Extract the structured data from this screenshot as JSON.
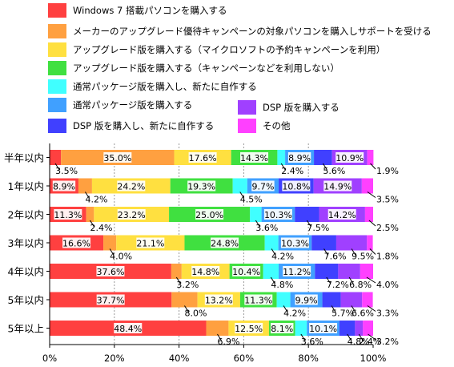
{
  "chart_data": {
    "type": "bar",
    "orientation": "horizontal",
    "stacked": true,
    "percent": true,
    "title": "",
    "xlabel": "",
    "ylabel": "",
    "xlim": [
      0,
      100
    ],
    "x_ticks": [
      "0%",
      "20%",
      "40%",
      "60%",
      "80%",
      "100%"
    ],
    "grid": true,
    "legend_position": "top",
    "categories": [
      "半年以内",
      "1年以内",
      "2年以内",
      "3年以内",
      "4年以内",
      "5年以内",
      "5年以上"
    ],
    "series": [
      {
        "name": "Windows 7 搭載パソコンを購入する",
        "color": "#ff4040",
        "values": [
          3.5,
          8.9,
          11.3,
          16.6,
          37.6,
          37.7,
          48.4
        ]
      },
      {
        "name": "メーカーのアップグレード優待キャンペーンの対象パソコンを購入しサポートを受ける",
        "color": "#ffa040",
        "values": [
          35.0,
          4.2,
          2.4,
          4.0,
          3.2,
          8.0,
          6.9
        ]
      },
      {
        "name": "アップグレード版を購入する（マイクロソフトの予約キャンペーンを利用）",
        "color": "#ffe040",
        "values": [
          17.6,
          24.2,
          23.2,
          21.1,
          14.8,
          13.2,
          12.5
        ]
      },
      {
        "name": "アップグレード版を購入する（キャンペーンなどを利用しない）",
        "color": "#40e040",
        "values": [
          14.3,
          19.3,
          25.0,
          24.8,
          10.4,
          11.3,
          8.1
        ]
      },
      {
        "name": "通常パッケージ版を購入し、新たに自作する",
        "color": "#40ffff",
        "values": [
          2.4,
          4.5,
          3.6,
          4.2,
          4.8,
          4.2,
          3.6
        ]
      },
      {
        "name": "通常パッケージ版を購入する",
        "color": "#40a0ff",
        "values": [
          8.9,
          9.7,
          10.3,
          10.3,
          11.2,
          9.9,
          10.1
        ]
      },
      {
        "name": "DSP 版を購入し、新たに自作する",
        "color": "#4040ff",
        "values": [
          5.6,
          10.8,
          7.5,
          7.6,
          7.2,
          5.7,
          4.8
        ]
      },
      {
        "name": "DSP 版を購入する",
        "color": "#a040ff",
        "values": [
          10.9,
          14.9,
          14.2,
          9.5,
          6.8,
          6.6,
          2.4
        ]
      },
      {
        "name": "その他",
        "color": "#ff40ff",
        "values": [
          1.9,
          3.5,
          2.5,
          1.8,
          4.0,
          3.3,
          3.2
        ]
      }
    ],
    "bar_labels": [
      [
        {
          "text": "3.5%",
          "s": 0,
          "pos": "below"
        },
        {
          "text": "35.0%",
          "s": 1,
          "pos": "inside"
        },
        {
          "text": "17.6%",
          "s": 2,
          "pos": "inside"
        },
        {
          "text": "14.3%",
          "s": 3,
          "pos": "inside"
        },
        {
          "text": "2.4%",
          "s": 4,
          "pos": "below"
        },
        {
          "text": "8.9%",
          "s": 5,
          "pos": "inside"
        },
        {
          "text": "5.6%",
          "s": 6,
          "pos": "below"
        },
        {
          "text": "10.9%",
          "s": 7,
          "pos": "inside"
        },
        {
          "text": "1.9%",
          "s": 8,
          "pos": "right-below"
        }
      ],
      [
        {
          "text": "8.9%",
          "s": 0,
          "pos": "inside"
        },
        {
          "text": "4.2%",
          "s": 1,
          "pos": "below"
        },
        {
          "text": "24.2%",
          "s": 2,
          "pos": "inside"
        },
        {
          "text": "19.3%",
          "s": 3,
          "pos": "inside"
        },
        {
          "text": "4.5%",
          "s": 4,
          "pos": "below"
        },
        {
          "text": "9.7%",
          "s": 5,
          "pos": "inside"
        },
        {
          "text": "10.8%",
          "s": 6,
          "pos": "inside"
        },
        {
          "text": "14.9%",
          "s": 7,
          "pos": "inside"
        },
        {
          "text": "3.5%",
          "s": 8,
          "pos": "right-below"
        }
      ],
      [
        {
          "text": "11.3%",
          "s": 0,
          "pos": "inside"
        },
        {
          "text": "2.4%",
          "s": 1,
          "pos": "below"
        },
        {
          "text": "23.2%",
          "s": 2,
          "pos": "inside"
        },
        {
          "text": "25.0%",
          "s": 3,
          "pos": "inside"
        },
        {
          "text": "3.6%",
          "s": 4,
          "pos": "below"
        },
        {
          "text": "10.3%",
          "s": 5,
          "pos": "inside"
        },
        {
          "text": "7.5%",
          "s": 6,
          "pos": "below"
        },
        {
          "text": "14.2%",
          "s": 7,
          "pos": "inside"
        },
        {
          "text": "2.5%",
          "s": 8,
          "pos": "right-below"
        }
      ],
      [
        {
          "text": "16.6%",
          "s": 0,
          "pos": "inside"
        },
        {
          "text": "4.0%",
          "s": 1,
          "pos": "below"
        },
        {
          "text": "21.1%",
          "s": 2,
          "pos": "inside"
        },
        {
          "text": "24.8%",
          "s": 3,
          "pos": "inside"
        },
        {
          "text": "4.2%",
          "s": 4,
          "pos": "below"
        },
        {
          "text": "10.3%",
          "s": 5,
          "pos": "inside"
        },
        {
          "text": "7.6%",
          "s": 6,
          "pos": "below"
        },
        {
          "text": "9.5%",
          "s": 7,
          "pos": "below"
        },
        {
          "text": "1.8%",
          "s": 8,
          "pos": "right-below"
        }
      ],
      [
        {
          "text": "37.6%",
          "s": 0,
          "pos": "inside"
        },
        {
          "text": "3.2%",
          "s": 1,
          "pos": "below"
        },
        {
          "text": "14.8%",
          "s": 2,
          "pos": "inside"
        },
        {
          "text": "10.4%",
          "s": 3,
          "pos": "inside"
        },
        {
          "text": "4.8%",
          "s": 4,
          "pos": "below"
        },
        {
          "text": "11.2%",
          "s": 5,
          "pos": "inside"
        },
        {
          "text": "7.2%",
          "s": 6,
          "pos": "below"
        },
        {
          "text": "6.8%",
          "s": 7,
          "pos": "below"
        },
        {
          "text": "4.0%",
          "s": 8,
          "pos": "right-below"
        }
      ],
      [
        {
          "text": "37.7%",
          "s": 0,
          "pos": "inside"
        },
        {
          "text": "8.0%",
          "s": 1,
          "pos": "below"
        },
        {
          "text": "13.2%",
          "s": 2,
          "pos": "inside"
        },
        {
          "text": "11.3%",
          "s": 3,
          "pos": "inside"
        },
        {
          "text": "4.2%",
          "s": 4,
          "pos": "below"
        },
        {
          "text": "9.9%",
          "s": 5,
          "pos": "inside"
        },
        {
          "text": "5.7%",
          "s": 6,
          "pos": "below"
        },
        {
          "text": "6.6%",
          "s": 7,
          "pos": "below"
        },
        {
          "text": "3.3%",
          "s": 8,
          "pos": "right-below"
        }
      ],
      [
        {
          "text": "48.4%",
          "s": 0,
          "pos": "inside"
        },
        {
          "text": "6.9%",
          "s": 1,
          "pos": "below"
        },
        {
          "text": "12.5%",
          "s": 2,
          "pos": "inside"
        },
        {
          "text": "8.1%",
          "s": 3,
          "pos": "inside"
        },
        {
          "text": "3.6%",
          "s": 4,
          "pos": "below"
        },
        {
          "text": "10.1%",
          "s": 5,
          "pos": "inside"
        },
        {
          "text": "4.8%",
          "s": 6,
          "pos": "below"
        },
        {
          "text": "2.4%",
          "s": 7,
          "pos": "below"
        },
        {
          "text": "3.2%",
          "s": 8,
          "pos": "right-below"
        }
      ]
    ]
  }
}
